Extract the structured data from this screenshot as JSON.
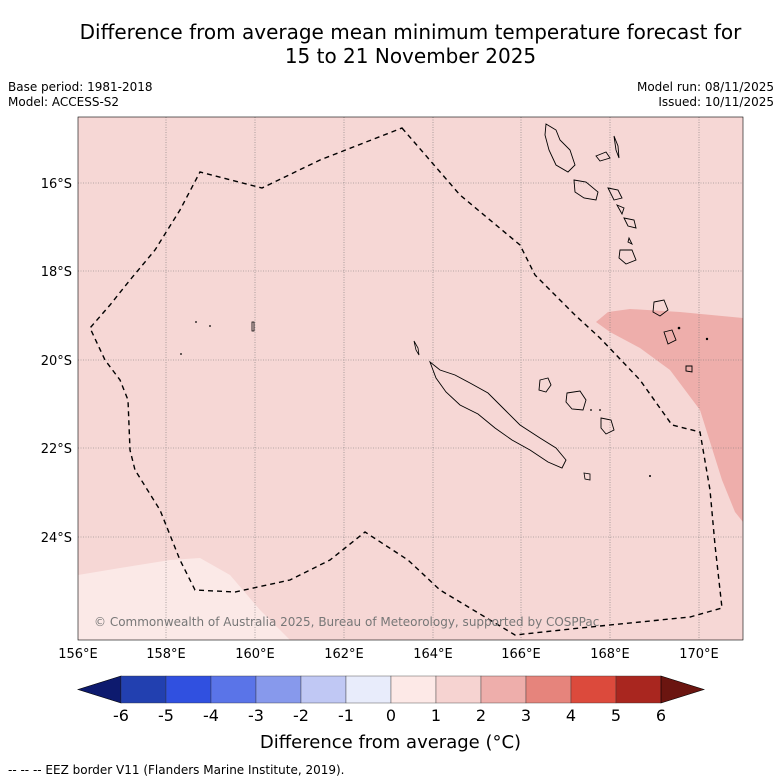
{
  "title_line1": "Difference from average mean minimum temperature forecast for",
  "title_line2": "15 to 21 November 2025",
  "base_period": "Base period: 1981-2018",
  "model": "Model: ACCESS-S2",
  "model_run": "Model run: 08/11/2025",
  "issued": "Issued: 10/11/2025",
  "copyright": "© Commonwealth of Australia 2025, Bureau of Meteorology, supported by COSPPac",
  "lat_labels": [
    "16°S",
    "18°S",
    "20°S",
    "22°S",
    "24°S"
  ],
  "lon_labels": [
    "156°E",
    "158°E",
    "160°E",
    "162°E",
    "164°E",
    "166°E",
    "168°E",
    "170°E"
  ],
  "colorbar": {
    "ticks": [
      "-6",
      "-5",
      "-4",
      "-3",
      "-2",
      "-1",
      "0",
      "1",
      "2",
      "3",
      "4",
      "5",
      "6"
    ],
    "colors": [
      "#0d1a6e",
      "#2240b0",
      "#3050e0",
      "#5a74e8",
      "#8799ec",
      "#c0c8f4",
      "#e8ecfb",
      "#fde9e7",
      "#f6d3d1",
      "#eeaeab",
      "#e6847c",
      "#dc4a3c",
      "#a9261f",
      "#6b1510"
    ],
    "title": "Difference from average (",
    "title_unit": "°C)"
  },
  "footer": "--  --  -- EEZ border V11 (Flanders Marine Institute, 2019)."
}
